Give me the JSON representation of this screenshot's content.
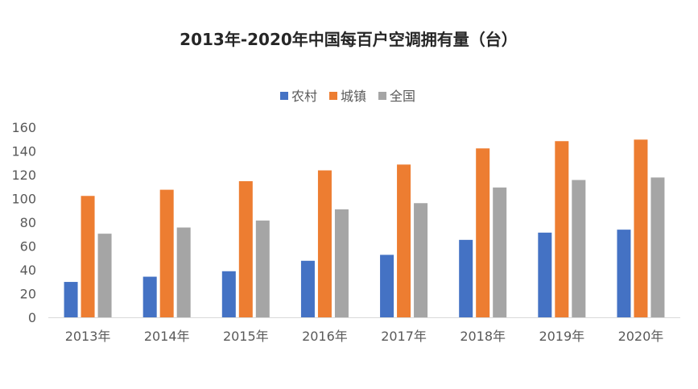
{
  "chart_data": {
    "type": "bar",
    "title": "2013年-2020年中国每百户空调拥有量（台）",
    "categories": [
      "2013年",
      "2014年",
      "2015年",
      "2016年",
      "2017年",
      "2018年",
      "2019年",
      "2020年"
    ],
    "series": [
      {
        "name": "农村",
        "color": "#4472C4",
        "values": [
          29.8,
          34.2,
          38.8,
          47.6,
          52.6,
          65.2,
          71.3,
          73.8
        ]
      },
      {
        "name": "城镇",
        "color": "#ED7D31",
        "values": [
          102.2,
          107.4,
          114.6,
          123.7,
          128.6,
          142.2,
          148.3,
          149.6
        ]
      },
      {
        "name": "全国",
        "color": "#A5A5A5",
        "values": [
          70.4,
          75.6,
          81.5,
          90.9,
          96.1,
          109.3,
          115.6,
          117.7
        ]
      }
    ],
    "ylim": [
      0,
      160
    ],
    "yticks": [
      0,
      20,
      40,
      60,
      80,
      100,
      120,
      140,
      160
    ],
    "xlabel": "",
    "ylabel": "",
    "grid": false,
    "legend": "top"
  }
}
